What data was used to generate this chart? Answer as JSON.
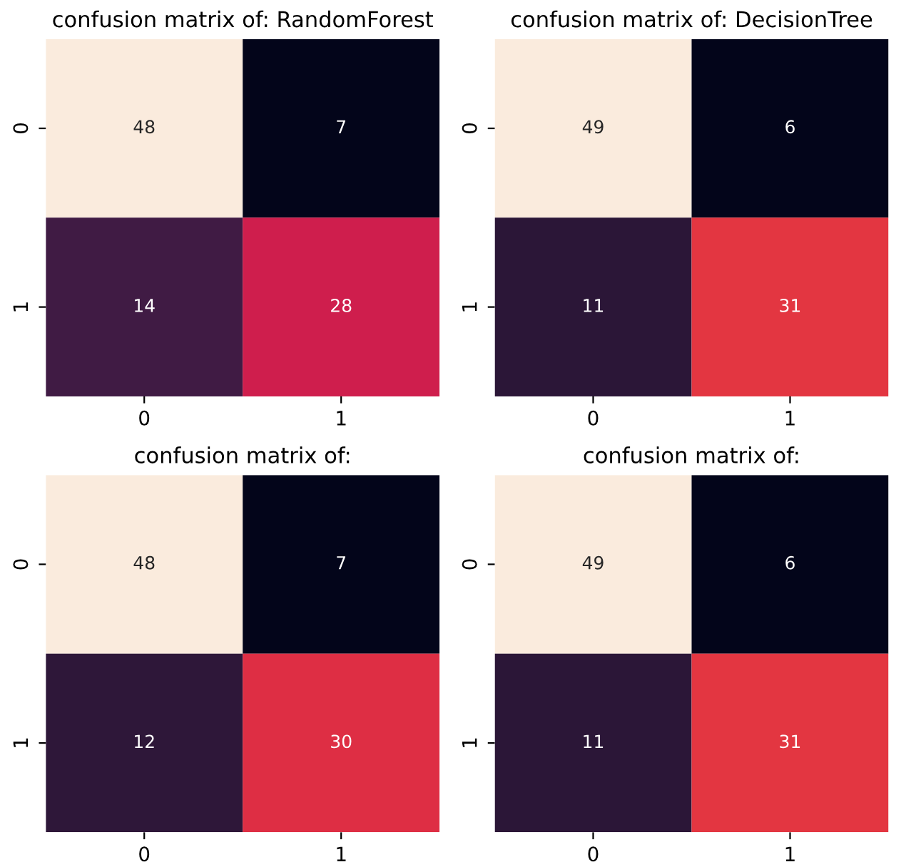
{
  "chart_data": [
    {
      "type": "heatmap",
      "title": "confusion matrix of: RandomForest",
      "categories": [
        "0",
        "1"
      ],
      "y_categories": [
        "0",
        "1"
      ],
      "cells": [
        [
          48,
          7
        ],
        [
          14,
          28
        ]
      ],
      "data_labels": true
    },
    {
      "type": "heatmap",
      "title": "confusion matrix of: DecisionTree",
      "categories": [
        "0",
        "1"
      ],
      "y_categories": [
        "0",
        "1"
      ],
      "cells": [
        [
          49,
          6
        ],
        [
          11,
          31
        ]
      ],
      "data_labels": true
    },
    {
      "type": "heatmap",
      "title": "confusion matrix of:",
      "categories": [
        "0",
        "1"
      ],
      "y_categories": [
        "0",
        "1"
      ],
      "cells": [
        [
          48,
          7
        ],
        [
          12,
          30
        ]
      ],
      "data_labels": true
    },
    {
      "type": "heatmap",
      "title": "confusion matrix of:",
      "categories": [
        "0",
        "1"
      ],
      "y_categories": [
        "0",
        "1"
      ],
      "cells": [
        [
          49,
          6
        ],
        [
          11,
          31
        ]
      ],
      "data_labels": true
    }
  ]
}
